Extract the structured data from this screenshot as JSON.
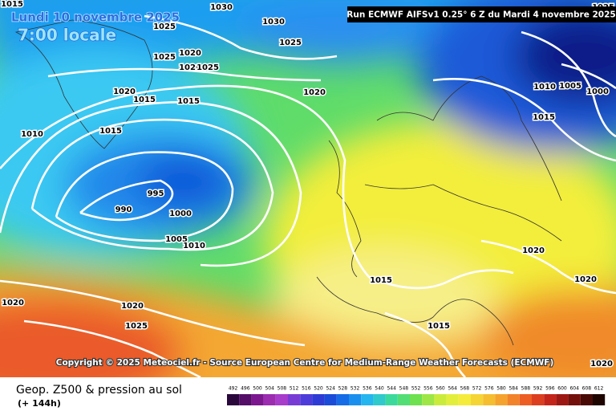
{
  "header": {
    "title": "Lundi 10 novembre 2025",
    "subtitle": "7:00 locale",
    "run": "Run ECMWF AIFSv1 0.25° 6 Z du Mardi 4 novembre 2025"
  },
  "isobar_labels": [
    "1015",
    "1030",
    "1030",
    "1025",
    "1025",
    "1025",
    "1020",
    "1020",
    "1025",
    "1020",
    "1015",
    "1015",
    "1020",
    "1010",
    "1015",
    "995",
    "990",
    "1000",
    "1005",
    "1010",
    "1010",
    "1005",
    "1000",
    "1015",
    "1020",
    "1020",
    "1015",
    "1015",
    "1020",
    "1020",
    "1025",
    "1020",
    "1025"
  ],
  "copyright": "Copyright © 2025 Meteociel.fr - Source European Centre for Medium-Range Weather Forecasts (ECMWF)",
  "legend": {
    "title": "Geop. Z500 & pression au sol",
    "lead": "(+ 144h)",
    "scale": [
      492,
      496,
      500,
      504,
      508,
      512,
      516,
      520,
      524,
      528,
      532,
      536,
      540,
      544,
      548,
      552,
      556,
      560,
      564,
      568,
      572,
      576,
      580,
      584,
      588,
      592,
      596,
      600,
      604,
      608,
      612
    ]
  }
}
